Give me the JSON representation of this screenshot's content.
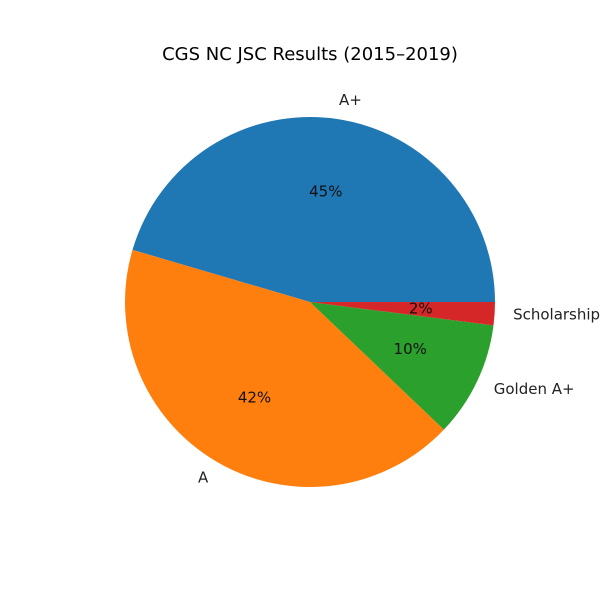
{
  "chart_data": {
    "type": "pie",
    "title": "CGS NC JSC Results (2015–2019)",
    "categories": [
      "A+",
      "A",
      "Golden A+",
      "Scholarship"
    ],
    "values": [
      45,
      42,
      10,
      2
    ],
    "percent_labels": [
      "45%",
      "42%",
      "10%",
      "2%"
    ],
    "colors": [
      "#1f77b4",
      "#ff7f0e",
      "#2ca02c",
      "#d62728"
    ],
    "start_angle_deg": 0,
    "direction": "counterclockwise",
    "legend": "none"
  }
}
